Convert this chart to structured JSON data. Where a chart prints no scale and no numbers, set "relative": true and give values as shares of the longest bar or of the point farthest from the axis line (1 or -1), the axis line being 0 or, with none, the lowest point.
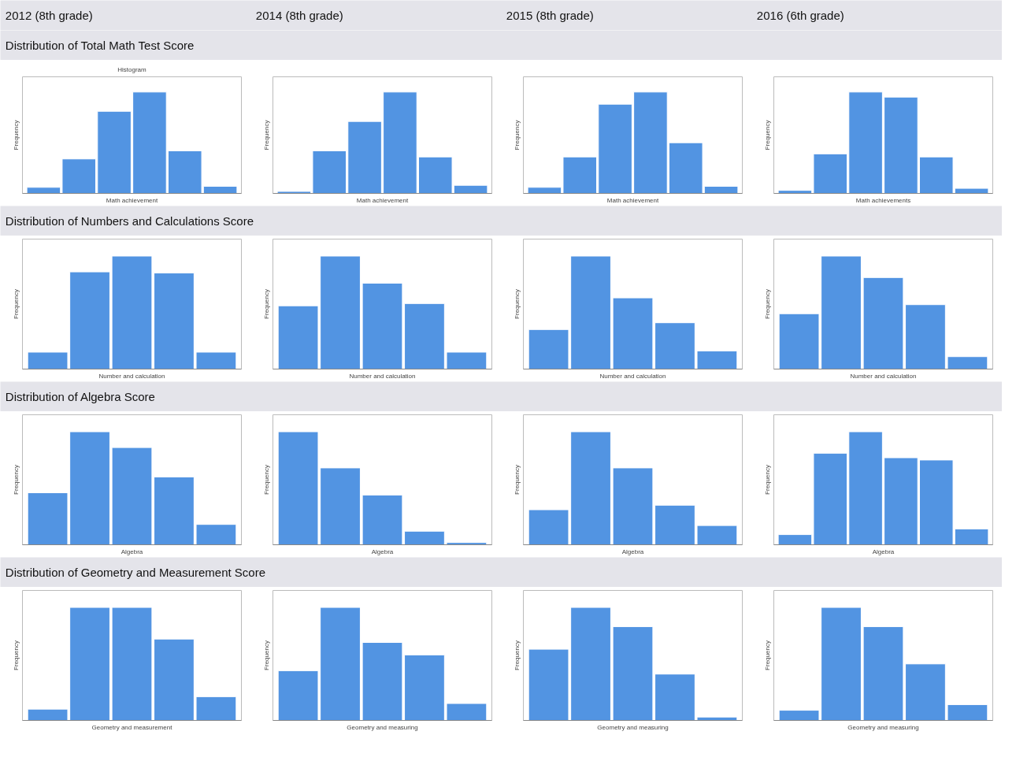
{
  "chart_data": [
    {
      "type": "bar",
      "relative": true,
      "title": "2012 (8th grade)",
      "subtitle": "Distribution of Total Math Test Score",
      "annotations": [
        "Histogram"
      ],
      "categories": [
        null,
        null,
        null,
        null,
        null,
        null
      ],
      "values": [
        0.06,
        0.34,
        0.81,
        1,
        0.42,
        0.07
      ],
      "color": "#5294e2",
      "xlabel": "Math achievement",
      "ylabel": "Frequency"
    },
    {
      "type": "bar",
      "relative": true,
      "title": "2014 (8th grade)",
      "categories": [
        null,
        null,
        null,
        null,
        null,
        null
      ],
      "values": [
        0.02,
        0.42,
        0.71,
        1,
        0.36,
        0.08
      ],
      "color": "#5294e2",
      "xlabel": "Math achievement",
      "ylabel": "Frequency"
    },
    {
      "type": "bar",
      "relative": true,
      "title": "2015 (8th grade)",
      "categories": [
        null,
        null,
        null,
        null,
        null,
        null
      ],
      "values": [
        0.06,
        0.36,
        0.88,
        1,
        0.5,
        0.07
      ],
      "color": "#5294e2",
      "xlabel": "Math achievement",
      "ylabel": "Frequency"
    },
    {
      "type": "bar",
      "relative": true,
      "title": "2016 (6th grade)",
      "categories": [
        null,
        null,
        null,
        null,
        null,
        null
      ],
      "values": [
        0.03,
        0.39,
        1,
        0.95,
        0.36,
        0.05
      ],
      "color": "#5294e2",
      "xlabel": "Math achievements",
      "ylabel": "Frequency"
    },
    {
      "type": "bar",
      "relative": true,
      "subtitle": "Distribution of Numbers and Calculations Score",
      "categories": [
        null,
        null,
        null,
        null,
        null
      ],
      "values": [
        0.15,
        0.86,
        1,
        0.85,
        0.15
      ],
      "color": "#5294e2",
      "xlabel": "Number and calculation",
      "ylabel": "Frequency"
    },
    {
      "type": "bar",
      "relative": true,
      "categories": [
        null,
        null,
        null,
        null,
        null
      ],
      "values": [
        0.56,
        1,
        0.76,
        0.58,
        0.15
      ],
      "color": "#5294e2",
      "xlabel": "Number and calculation",
      "ylabel": "Frequency"
    },
    {
      "type": "bar",
      "relative": true,
      "categories": [
        null,
        null,
        null,
        null,
        null
      ],
      "values": [
        0.35,
        1,
        0.63,
        0.41,
        0.16
      ],
      "color": "#5294e2",
      "xlabel": "Number and calculation",
      "ylabel": "Frequency"
    },
    {
      "type": "bar",
      "relative": true,
      "categories": [
        null,
        null,
        null,
        null,
        null
      ],
      "values": [
        0.49,
        1,
        0.81,
        0.57,
        0.11
      ],
      "color": "#5294e2",
      "xlabel": "Number and calculation",
      "ylabel": "Frequency"
    },
    {
      "type": "bar",
      "relative": true,
      "subtitle": "Distribution of Algebra Score",
      "categories": [
        null,
        null,
        null,
        null,
        null
      ],
      "values": [
        0.46,
        1,
        0.86,
        0.6,
        0.18
      ],
      "color": "#5294e2",
      "xlabel": "Algebra",
      "ylabel": "Frequency"
    },
    {
      "type": "bar",
      "relative": true,
      "categories": [
        null,
        null,
        null,
        null,
        null
      ],
      "values": [
        1,
        0.68,
        0.44,
        0.12,
        0.02
      ],
      "color": "#5294e2",
      "xlabel": "Algebra",
      "ylabel": "Frequency"
    },
    {
      "type": "bar",
      "relative": true,
      "categories": [
        null,
        null,
        null,
        null,
        null
      ],
      "values": [
        0.31,
        1,
        0.68,
        0.35,
        0.17
      ],
      "color": "#5294e2",
      "xlabel": "Algebra",
      "ylabel": "Frequency"
    },
    {
      "type": "bar",
      "relative": true,
      "categories": [
        null,
        null,
        null,
        null,
        null,
        null
      ],
      "values": [
        0.09,
        0.81,
        1,
        0.77,
        0.75,
        0.14
      ],
      "color": "#5294e2",
      "xlabel": "Algebra",
      "ylabel": "Frequency"
    },
    {
      "type": "bar",
      "relative": true,
      "subtitle": "Distribution of Geometry and Measurement Score",
      "categories": [
        null,
        null,
        null,
        null,
        null
      ],
      "values": [
        0.1,
        1,
        1,
        0.72,
        0.21
      ],
      "color": "#5294e2",
      "xlabel": "Geometry and measurement",
      "ylabel": "Frequency"
    },
    {
      "type": "bar",
      "relative": true,
      "categories": [
        null,
        null,
        null,
        null,
        null
      ],
      "values": [
        0.44,
        1,
        0.69,
        0.58,
        0.15
      ],
      "color": "#5294e2",
      "xlabel": "Geometry and measuring",
      "ylabel": "Frequency"
    },
    {
      "type": "bar",
      "relative": true,
      "categories": [
        null,
        null,
        null,
        null,
        null
      ],
      "values": [
        0.63,
        1,
        0.83,
        0.41,
        0.03
      ],
      "color": "#5294e2",
      "xlabel": "Geometry and measuring",
      "ylabel": "Frequency"
    },
    {
      "type": "bar",
      "relative": true,
      "categories": [
        null,
        null,
        null,
        null,
        null
      ],
      "values": [
        0.09,
        1,
        0.83,
        0.5,
        0.14
      ],
      "color": "#5294e2",
      "xlabel": "Geometry and measuring",
      "ylabel": "Frequency"
    }
  ]
}
